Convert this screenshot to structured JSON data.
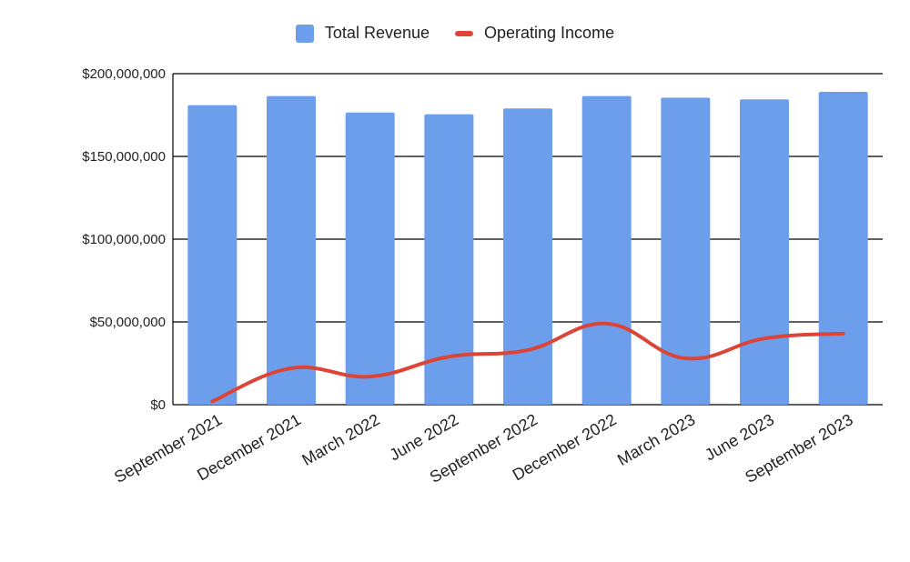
{
  "chart_data": {
    "type": "bar",
    "categories": [
      "September 2021",
      "December 2021",
      "March 2022",
      "June 2022",
      "September 2022",
      "December 2022",
      "March 2023",
      "June 2023",
      "September 2023"
    ],
    "series": [
      {
        "name": "Total Revenue",
        "type": "bar",
        "color": "#6d9eeb",
        "values": [
          181000000,
          186500000,
          176500000,
          175500000,
          179000000,
          186500000,
          185500000,
          184500000,
          189000000
        ]
      },
      {
        "name": "Operating Income",
        "type": "line",
        "color": "#db4437",
        "values": [
          2000000,
          22000000,
          17000000,
          29000000,
          33000000,
          49000000,
          28000000,
          40000000,
          43000000
        ]
      }
    ],
    "yticks": [
      "$0",
      "$50,000,000",
      "$100,000,000",
      "$150,000,000",
      "$200,000,000"
    ],
    "ylim": [
      0,
      200000000
    ],
    "grid": true,
    "legend_position": "top"
  }
}
